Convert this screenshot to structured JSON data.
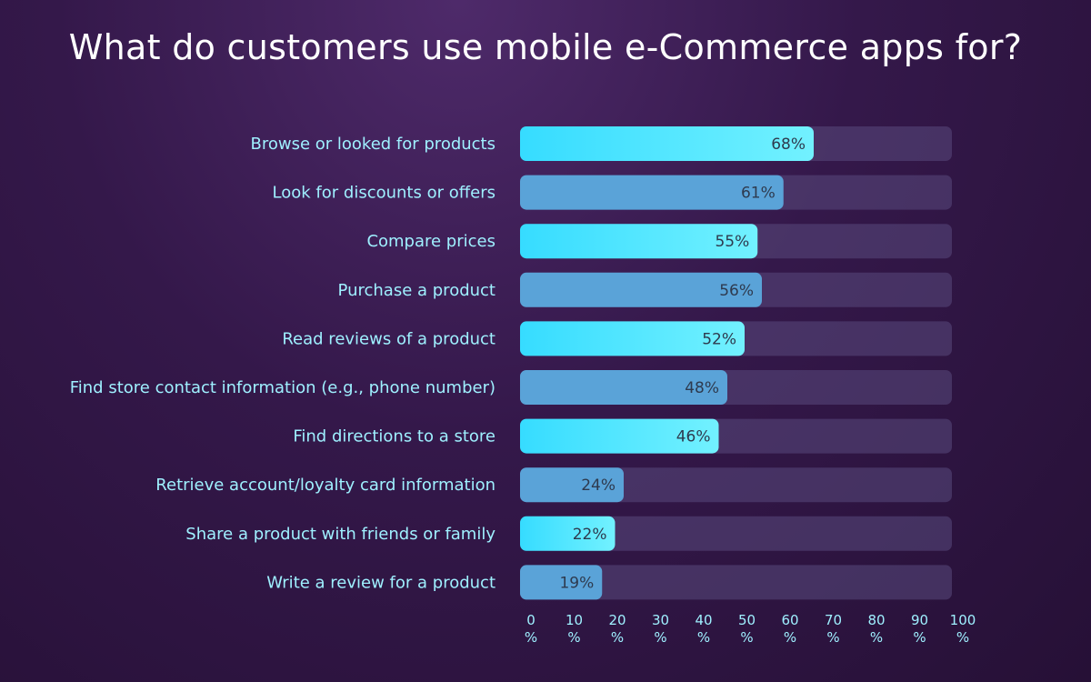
{
  "chart_data": {
    "type": "bar",
    "orientation": "horizontal",
    "title": "What do customers use mobile e-Commerce apps for?",
    "categories": [
      "Browse or looked for products",
      "Look for discounts or offers",
      "Compare prices",
      "Purchase a product",
      "Read reviews of a product",
      "Find store contact information (e.g., phone number)",
      "Find directions to a store",
      "Retrieve account/loyalty card information",
      "Share a product with friends or family",
      "Write a review for a product"
    ],
    "values": [
      68,
      61,
      55,
      56,
      52,
      48,
      46,
      24,
      22,
      19
    ],
    "value_labels": [
      "68%",
      "61%",
      "55%",
      "56%",
      "52%",
      "48%",
      "46%",
      "24%",
      "22%",
      "19%"
    ],
    "xlim": [
      0,
      100
    ],
    "ticks": [
      0,
      10,
      20,
      30,
      40,
      50,
      60,
      70,
      80,
      90,
      100
    ],
    "tick_labels": [
      "0",
      "10",
      "20",
      "30",
      "40",
      "50",
      "60",
      "70",
      "80",
      "90",
      "100"
    ],
    "tick_unit": "%",
    "xlabel": "",
    "ylabel": "",
    "grid": false,
    "legend": "none",
    "colors": {
      "bar_bright_start": "#36dcff",
      "bar_bright_end": "#72f1ff",
      "bar_muted": "#5aa3d8",
      "track": "#5a4a7e",
      "category_text": "#9ff0ff",
      "value_text": "#2e3a4e",
      "title_text": "#ffffff"
    }
  }
}
